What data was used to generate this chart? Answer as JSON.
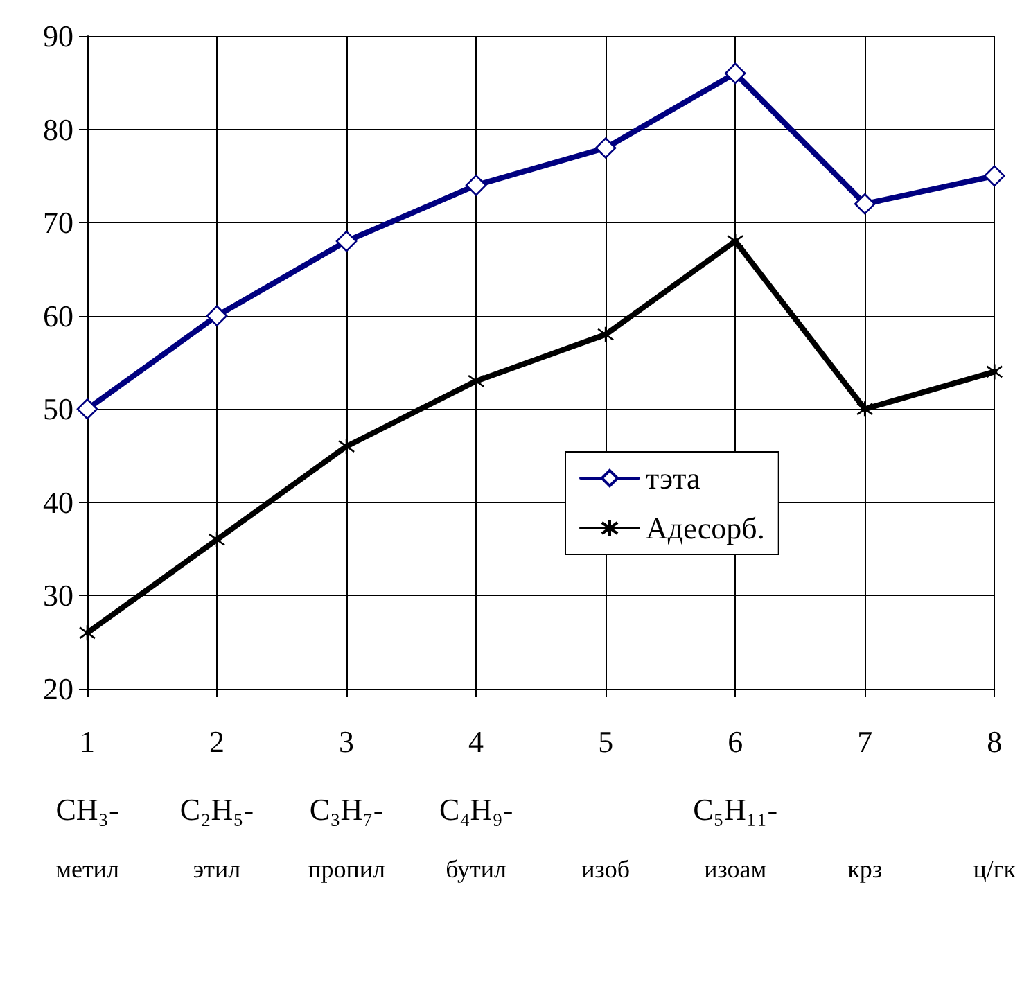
{
  "chart_data": {
    "type": "line",
    "categories": [
      "1\nCH₃-\nметил",
      "2\nC₂H₅-\nэтил",
      "3\nC₃H₇-\nпропил",
      "4\nC₄H₉-\nбутил",
      "5\n\nизоб",
      "6\nC₅H₁₁-\nизоам",
      "7\n\nкрз",
      "8\n\nц/гк"
    ],
    "series": [
      {
        "name": "тэта",
        "color": "#000080",
        "marker": "diamond",
        "values": [
          50,
          60,
          68,
          74,
          78,
          86,
          72,
          75
        ]
      },
      {
        "name": "Адесорб.",
        "color": "#000000",
        "marker": "cross",
        "values": [
          26,
          36,
          46,
          53,
          58,
          68,
          50,
          54
        ]
      }
    ],
    "ylim": [
      20,
      90
    ],
    "yticks": [
      20,
      30,
      40,
      50,
      60,
      70,
      80,
      90
    ],
    "grid": true,
    "legend": "center right",
    "line_style": "solid"
  }
}
